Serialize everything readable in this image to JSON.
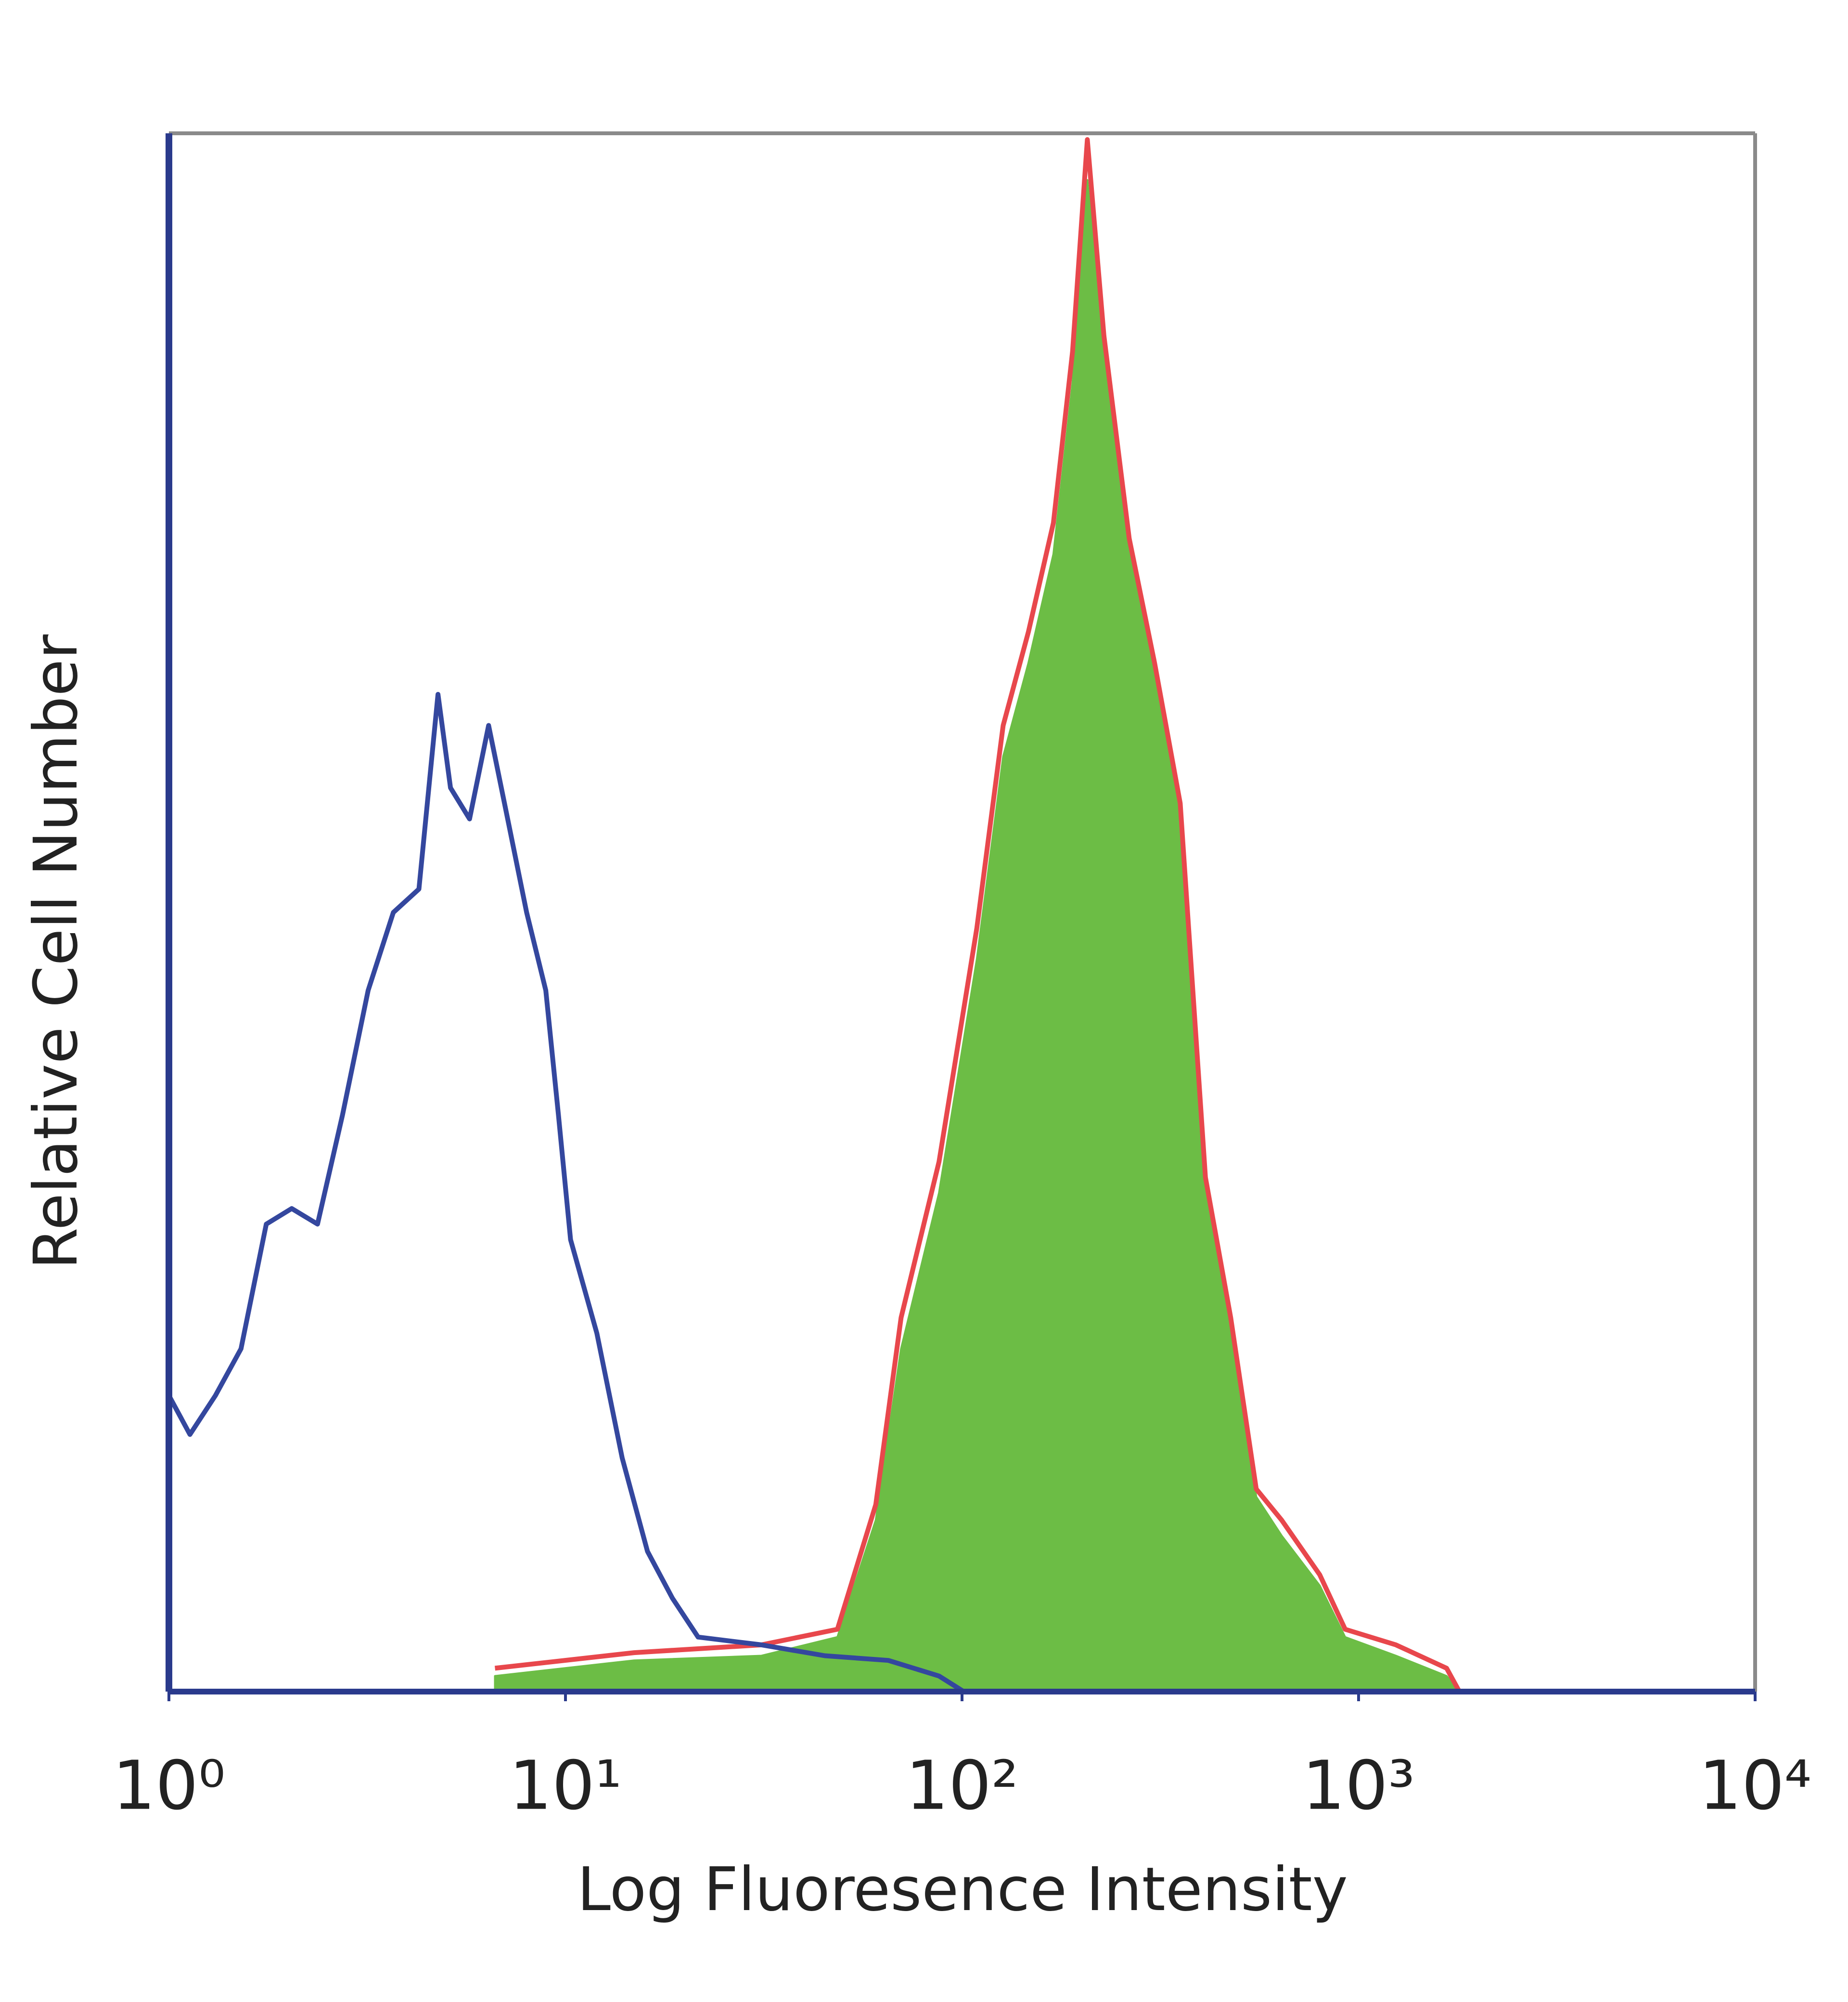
{
  "chart_data": {
    "type": "line",
    "xlabel": "Log Fluoresence Intensity",
    "ylabel": "Relative Cell Number",
    "xscale": "log",
    "xlim": [
      1,
      10000
    ],
    "xticks": [
      {
        "value": 1,
        "label": "10⁰"
      },
      {
        "value": 10,
        "label": "10¹"
      },
      {
        "value": 100,
        "label": "10²"
      },
      {
        "value": 1000,
        "label": "10³"
      },
      {
        "value": 10000,
        "label": "10⁴"
      }
    ],
    "ylim": [
      0,
      100
    ],
    "series": [
      {
        "color": "#6cbd45",
        "fill": true,
        "x": [
          6.64,
          14.9,
          31.2,
          48.5,
          60.6,
          70.2,
          87.5,
          109,
          127,
          147,
          170,
          190,
          207,
          228,
          264,
          306,
          355,
          411,
          476,
          552,
          640,
          798,
          925,
          1242,
          1667,
          1796
        ],
        "values": [
          1,
          2,
          2.3,
          3.5,
          11,
          22,
          32,
          47,
          60,
          66,
          73,
          84,
          97,
          86,
          73,
          65,
          56,
          32,
          23,
          12.5,
          10,
          6.8,
          3.5,
          2.3,
          1,
          0
        ]
      },
      {
        "color": "#e8474c",
        "fill": false,
        "x": [
          6.64,
          14.9,
          31.2,
          48.5,
          60.6,
          70.2,
          87.5,
          109,
          127,
          147,
          170,
          190,
          207,
          228,
          264,
          306,
          355,
          411,
          476,
          552,
          640,
          798,
          925,
          1242,
          1667,
          1796
        ],
        "values": [
          1.5,
          2.5,
          3,
          4,
          12,
          24,
          34,
          49,
          62,
          68,
          75,
          86,
          99.6,
          87,
          74,
          66,
          57,
          33,
          24,
          13,
          11,
          7.5,
          4,
          3,
          1.5,
          0
        ]
      },
      {
        "color": "#34479e",
        "fill": false,
        "x": [
          1,
          1.13,
          1.31,
          1.52,
          1.76,
          2.04,
          2.37,
          2.74,
          3.18,
          3.68,
          4.27,
          4.77,
          5.13,
          5.73,
          6.4,
          7.15,
          7.98,
          8.92,
          9.6,
          10.3,
          12,
          13.9,
          16.1,
          18.6,
          21.6,
          31.2,
          45.1,
          65.2,
          87.5,
          101
        ],
        "values": [
          19,
          16.5,
          19,
          22,
          30,
          31,
          30,
          37,
          45,
          50,
          51.5,
          64,
          58,
          56,
          62,
          56,
          50,
          45,
          37,
          29,
          23,
          15,
          9,
          6,
          3.5,
          3,
          2.3,
          2,
          1,
          0
        ]
      }
    ]
  }
}
